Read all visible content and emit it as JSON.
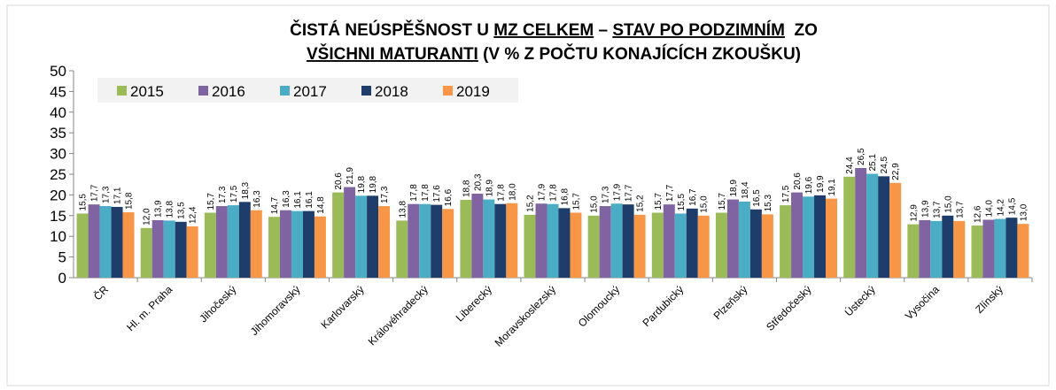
{
  "chart_data": {
    "type": "bar",
    "title": [
      [
        {
          "text": "ČISTÁ NEÚSPĚŠNOST U ",
          "underline": false
        },
        {
          "text": "MZ CELKEM",
          "underline": true
        },
        {
          "text": " – ",
          "underline": false
        },
        {
          "text": "STAV PO PODZIMNÍM",
          "underline": true
        },
        {
          "text": "  ZO",
          "underline": false
        }
      ],
      [
        {
          "text": "VŠICHNI MATURANTI",
          "underline": true
        },
        {
          "text": " (V % Z POČTU KONAJÍCÍCH ZKOUŠKU)",
          "underline": false
        }
      ]
    ],
    "categories": [
      "ČR",
      "Hl. m. Praha",
      "Jihočeský",
      "Jihomoravský",
      "Karlovarský",
      "Královéhradecký",
      "Liberecký",
      "Moravskoslezský",
      "Olomoucký",
      "Pardubický",
      "Plzeňský",
      "Středočeský",
      "Ústecký",
      "Vysočina",
      "Zlínský"
    ],
    "series": [
      {
        "name": "2015",
        "color": "#9bbb59",
        "values": [
          15.5,
          12.0,
          15.7,
          14.7,
          20.6,
          13.8,
          18.8,
          15.2,
          15.0,
          15.7,
          15.7,
          17.5,
          24.4,
          12.9,
          12.6
        ],
        "value_labels": [
          "15,5",
          "12,0",
          "15,7",
          "14,7",
          "20,6",
          "13,8",
          "18,8",
          "15,2",
          "15,0",
          "15,7",
          "15,7",
          "17,5",
          "24,4",
          "12,9",
          "12,6"
        ]
      },
      {
        "name": "2016",
        "color": "#8064a2",
        "values": [
          17.7,
          13.9,
          17.3,
          16.3,
          21.9,
          17.8,
          20.3,
          17.9,
          17.3,
          17.7,
          18.9,
          20.6,
          26.5,
          13.9,
          14.0
        ],
        "value_labels": [
          "17,7",
          "13,9",
          "17,3",
          "16,3",
          "21,9",
          "17,8",
          "20,3",
          "17,9",
          "17,3",
          "17,7",
          "18,9",
          "20,6",
          "26,5",
          "13,9",
          "14,0"
        ]
      },
      {
        "name": "2017",
        "color": "#4bacc6",
        "values": [
          17.3,
          13.8,
          17.5,
          16.1,
          19.8,
          17.8,
          18.9,
          17.8,
          17.9,
          15.5,
          18.4,
          19.6,
          25.1,
          13.7,
          14.2
        ],
        "value_labels": [
          "17,3",
          "13,8",
          "17,5",
          "16,1",
          "19,8",
          "17,8",
          "18,9",
          "17,8",
          "17,9",
          "15,5",
          "18,4",
          "19,6",
          "25,1",
          "13,7",
          "14,2"
        ]
      },
      {
        "name": "2018",
        "color": "#1f3d6b",
        "values": [
          17.1,
          13.5,
          18.3,
          16.1,
          19.8,
          17.6,
          17.8,
          16.8,
          17.7,
          16.7,
          16.5,
          19.9,
          24.5,
          15.0,
          14.5
        ],
        "value_labels": [
          "17,1",
          "13,5",
          "18,3",
          "16,1",
          "19,8",
          "17,6",
          "17,8",
          "16,8",
          "17,7",
          "16,7",
          "16,5",
          "19,9",
          "24,5",
          "15,0",
          "14,5"
        ]
      },
      {
        "name": "2019",
        "color": "#f79646",
        "values": [
          15.8,
          12.4,
          16.3,
          14.8,
          17.3,
          16.6,
          18.0,
          15.7,
          15.2,
          15.0,
          15.3,
          19.1,
          22.9,
          13.7,
          13.0
        ],
        "value_labels": [
          "15,8",
          "12,4",
          "16,3",
          "14,8",
          "17,3",
          "16,6",
          "18,0",
          "15,7",
          "15,2",
          "15,0",
          "15,3",
          "19,1",
          "22,9",
          "13,7",
          "13,0"
        ]
      }
    ],
    "ylim": [
      0,
      50
    ],
    "yticks": [
      0,
      5,
      10,
      15,
      20,
      25,
      30,
      35,
      40,
      45,
      50
    ],
    "grid": false,
    "legend": "top-left"
  }
}
